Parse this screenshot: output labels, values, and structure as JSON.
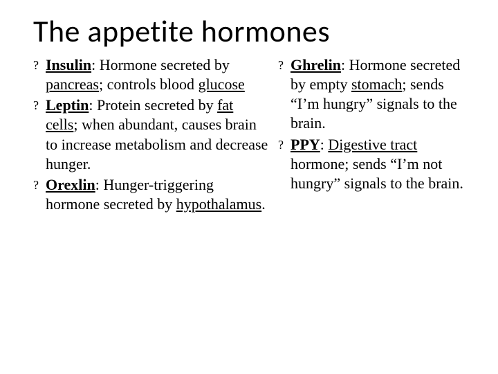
{
  "type": "document-slide",
  "background_color": "#ffffff",
  "text_color": "#000000",
  "title": {
    "text": "The appetite hormones",
    "font_family": "Calibri",
    "font_size_pt": 44
  },
  "bullet_glyph": "?",
  "body_font": {
    "family": "Georgia",
    "size_pt": 22,
    "line_height": 1.28
  },
  "columns": {
    "left": [
      {
        "term": "Insulin",
        "sep": ":  ",
        "before_u1": "Hormone secreted by ",
        "u1": "pancreas",
        "after_u1": "; controls blood ",
        "u2": "glucose",
        "after_u2": ""
      },
      {
        "term": "Leptin",
        "sep": ":  ",
        "before_u1": "Protein secreted by ",
        "u1": "fat cells",
        "after_u1": "; when abundant, causes brain to increase metabolism and decrease hunger.",
        "u2": "",
        "after_u2": ""
      },
      {
        "term": "Orexlin",
        "sep": ":  ",
        "before_u1": "Hunger-triggering hormone secreted by ",
        "u1": "hypothalamus",
        "after_u1": ".",
        "u2": "",
        "after_u2": ""
      }
    ],
    "right": [
      {
        "term": "Ghrelin",
        "sep": ":  ",
        "before_u1": "Hormone secreted by empty ",
        "u1": "stomach",
        "after_u1": "; sends “I’m hungry” signals to the brain.",
        "u2": "",
        "after_u2": ""
      },
      {
        "term": "PPY",
        "sep": ":  ",
        "before_u1": "",
        "u1": "Digestive tract",
        "after_u1": " hormone; sends “I’m not hungry” signals to the brain.",
        "u2": "",
        "after_u2": ""
      }
    ]
  }
}
